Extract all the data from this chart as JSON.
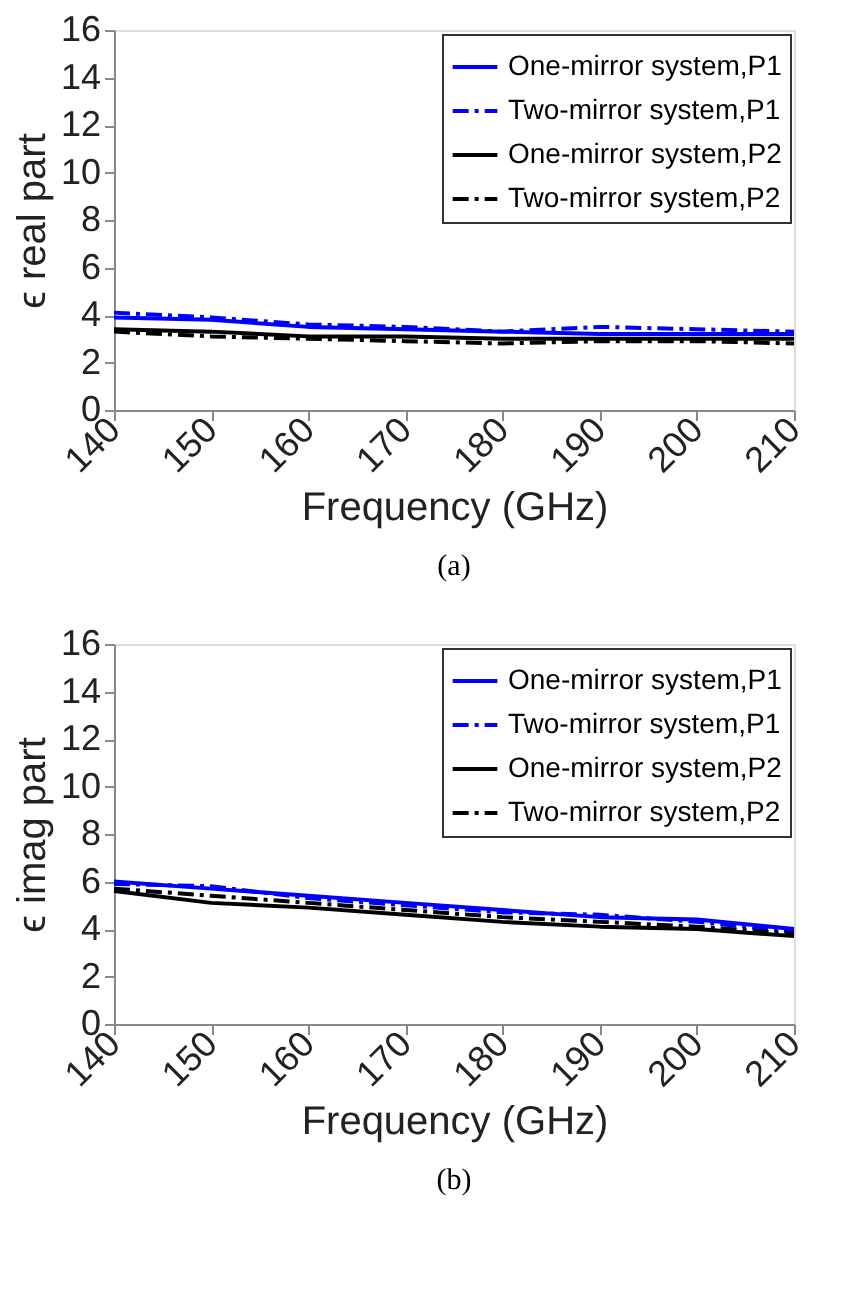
{
  "chart_data": [
    {
      "type": "line",
      "title": "(a)",
      "xlabel": "Frequency (GHz)",
      "ylabel": "ϵ real part",
      "x": [
        140,
        150,
        160,
        170,
        180,
        190,
        200,
        210
      ],
      "xlim": [
        140,
        210
      ],
      "xticks": [
        140,
        150,
        160,
        170,
        180,
        190,
        200,
        210
      ],
      "ylim": [
        0,
        16
      ],
      "yticks": [
        0,
        2,
        4,
        6,
        8,
        10,
        12,
        14,
        16
      ],
      "grid": false,
      "legend": "top right",
      "marker": "none",
      "series": [
        {
          "name": "One-mirror system,P1",
          "color": "#0000ff",
          "line_style": "solid",
          "values": [
            3.9,
            3.8,
            3.5,
            3.4,
            3.3,
            3.2,
            3.2,
            3.2
          ]
        },
        {
          "name": "Two-mirror system,P1",
          "color": "#0000ff",
          "line_style": "dashdot",
          "values": [
            4.1,
            3.9,
            3.6,
            3.5,
            3.3,
            3.5,
            3.4,
            3.3
          ]
        },
        {
          "name": "One-mirror system,P2",
          "color": "#000000",
          "line_style": "solid",
          "values": [
            3.4,
            3.3,
            3.1,
            3.1,
            3.0,
            3.0,
            3.0,
            3.0
          ]
        },
        {
          "name": "Two-mirror system,P2",
          "color": "#000000",
          "line_style": "dashdot",
          "values": [
            3.3,
            3.1,
            3.0,
            2.9,
            2.8,
            2.9,
            2.9,
            2.8
          ]
        }
      ]
    },
    {
      "type": "line",
      "title": "(b)",
      "xlabel": "Frequency (GHz)",
      "ylabel": "ϵ imag part",
      "x": [
        140,
        150,
        160,
        170,
        180,
        190,
        200,
        210
      ],
      "xlim": [
        140,
        210
      ],
      "xticks": [
        140,
        150,
        160,
        170,
        180,
        190,
        200,
        210
      ],
      "ylim": [
        0,
        16
      ],
      "yticks": [
        0,
        2,
        4,
        6,
        8,
        10,
        12,
        14,
        16
      ],
      "grid": false,
      "legend": "top right",
      "marker": "none",
      "series": [
        {
          "name": "One-mirror system,P1",
          "color": "#0000ff",
          "line_style": "solid",
          "values": [
            6.0,
            5.7,
            5.4,
            5.1,
            4.8,
            4.5,
            4.4,
            4.0
          ]
        },
        {
          "name": "Two-mirror system,P1",
          "color": "#0000ff",
          "line_style": "dashdot",
          "values": [
            5.9,
            5.8,
            5.3,
            5.0,
            4.7,
            4.6,
            4.3,
            3.9
          ]
        },
        {
          "name": "One-mirror system,P2",
          "color": "#000000",
          "line_style": "solid",
          "values": [
            5.6,
            5.1,
            4.9,
            4.6,
            4.3,
            4.1,
            4.0,
            3.7
          ]
        },
        {
          "name": "Two-mirror system,P2",
          "color": "#000000",
          "line_style": "dashdot",
          "values": [
            5.7,
            5.4,
            5.1,
            4.8,
            4.5,
            4.3,
            4.1,
            3.8
          ]
        }
      ]
    }
  ]
}
